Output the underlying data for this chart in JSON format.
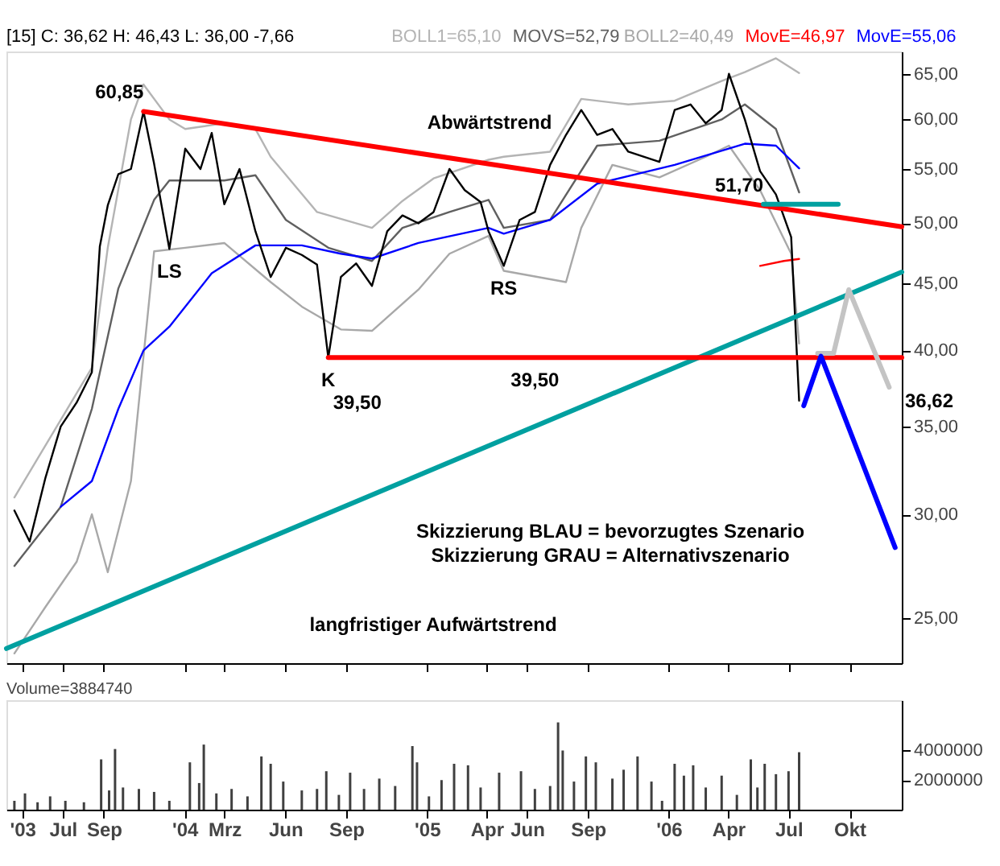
{
  "chart_data": [
    {
      "type": "line",
      "title": "[15] C: 36,62 H: 46,43 L: 36,00 -7,66",
      "log": "y",
      "tick_labels": "y",
      "xlim": [
        "2003-04-07",
        "2006-12-19"
      ],
      "xticks": [
        {
          "value": "2003-05-01",
          "label": null
        },
        {
          "value": "2003-07-01",
          "label": null
        },
        {
          "value": "2003-09-01",
          "label": null
        },
        {
          "value": "2004-01-01",
          "label": null
        },
        {
          "value": "2004-03-01",
          "label": null
        },
        {
          "value": "2004-06-01",
          "label": null
        },
        {
          "value": "2004-09-01",
          "label": null
        },
        {
          "value": "2005-01-01",
          "label": null
        },
        {
          "value": "2005-04-01",
          "label": null
        },
        {
          "value": "2005-06-01",
          "label": null
        },
        {
          "value": "2005-09-01",
          "label": null
        },
        {
          "value": "2006-01-01",
          "label": null
        },
        {
          "value": "2006-04-01",
          "label": null
        },
        {
          "value": "2006-07-01",
          "label": null
        },
        {
          "value": "2006-10-01",
          "label": null
        }
      ],
      "ylim": [
        23.1,
        67.6
      ],
      "yticks": [
        {
          "value": 25,
          "label": "25,00"
        },
        {
          "value": 30,
          "label": "30,00"
        },
        {
          "value": 35,
          "label": "35,00"
        },
        {
          "value": 40,
          "label": "40,00"
        },
        {
          "value": 45,
          "label": "45,00"
        },
        {
          "value": 50,
          "label": "50,00"
        },
        {
          "value": 55,
          "label": "55,00"
        },
        {
          "value": 60,
          "label": "60,00"
        },
        {
          "value": 65,
          "label": "65,00"
        }
      ],
      "series": [
        {
          "name": "BOLL1=65,10",
          "color": "#b4b4b4",
          "x": [
            "2003-04-19",
            "2003-08-14",
            "2003-09-07",
            "2003-10-12",
            "2003-10-31",
            "2003-12-09",
            "2004-01-02",
            "2004-03-01",
            "2004-04-17",
            "2004-05-10",
            "2004-07-19",
            "2004-10-10",
            "2004-11-25",
            "2005-01-11",
            "2005-04-04",
            "2005-04-27",
            "2005-07-06",
            "2005-08-22",
            "2005-11-01",
            "2006-01-10",
            "2006-03-22",
            "2006-04-26",
            "2006-06-12",
            "2006-07-17"
          ],
          "values": [
            30.9,
            38.8,
            47.9,
            60,
            63.8,
            60,
            59,
            59.6,
            59,
            56.2,
            51,
            49.6,
            52,
            54.1,
            55.9,
            56.2,
            56.7,
            62.2,
            61.6,
            62,
            64.2,
            65.2,
            66.8,
            65.1
          ]
        },
        {
          "name": "MOVS=52,79",
          "color": "#606060",
          "x": [
            "2003-04-19",
            "2003-06-28",
            "2003-08-14",
            "2003-09-23",
            "2003-11-16",
            "2003-12-09",
            "2004-03-01",
            "2004-04-17",
            "2004-06-02",
            "2004-08-05",
            "2004-10-10",
            "2004-11-25",
            "2005-02-04",
            "2005-04-04",
            "2005-04-27",
            "2005-07-06",
            "2005-09-15",
            "2005-12-18",
            "2006-03-22",
            "2006-04-26",
            "2006-06-12",
            "2006-07-17"
          ],
          "values": [
            27.4,
            30.4,
            36.1,
            44.6,
            52.1,
            53.9,
            53.9,
            54.4,
            50.3,
            47.9,
            46.8,
            49.6,
            51,
            52.1,
            49.6,
            50.3,
            57.3,
            57.8,
            60,
            61.6,
            59,
            52.79
          ]
        },
        {
          "name": "BOLL2=40,49",
          "color": "#a8a8a8",
          "x": [
            "2003-04-19",
            "2003-06-05",
            "2003-07-22",
            "2003-08-14",
            "2003-09-07",
            "2003-10-12",
            "2003-11-16",
            "2004-01-02",
            "2004-03-01",
            "2004-05-10",
            "2004-06-26",
            "2004-08-24",
            "2004-10-10",
            "2004-12-19",
            "2005-02-04",
            "2005-04-04",
            "2005-04-27",
            "2005-07-30",
            "2005-08-22",
            "2005-10-08",
            "2005-12-18",
            "2006-02-26",
            "2006-04-02",
            "2006-05-19",
            "2006-07-05",
            "2006-07-17"
          ],
          "values": [
            23.5,
            25.5,
            27.6,
            30,
            27.1,
            31.8,
            47.6,
            47.9,
            48.3,
            45.1,
            43.2,
            41.5,
            41.4,
            44.5,
            47.4,
            48.9,
            46,
            45.1,
            49.6,
            55.4,
            54.2,
            56.2,
            57.3,
            53,
            47.4,
            40.49
          ]
        },
        {
          "name": "MovE=46,97",
          "color": "#ff0000",
          "x": [
            "2006-05-19",
            "2006-06-24",
            "2006-07-17"
          ],
          "values": [
            46.4,
            46.8,
            46.97
          ]
        },
        {
          "name": "MovE=55,06",
          "color": "#0000ff",
          "x": [
            "2003-06-28",
            "2003-08-14",
            "2003-09-23",
            "2003-10-31",
            "2003-12-09",
            "2004-02-11",
            "2004-04-17",
            "2004-06-26",
            "2004-08-24",
            "2004-10-10",
            "2004-12-19",
            "2005-04-04",
            "2005-04-27",
            "2005-07-06",
            "2005-09-15",
            "2006-01-10",
            "2006-04-26",
            "2006-06-12",
            "2006-07-17"
          ],
          "values": [
            30.4,
            31.8,
            36.1,
            40,
            41.7,
            45.8,
            48.1,
            48.1,
            47.4,
            47,
            48.3,
            49.6,
            49.1,
            50.3,
            53.6,
            55.4,
            57.5,
            57.3,
            55.06
          ]
        },
        {
          "color": "#000000",
          "x": [
            "2003-04-19",
            "2003-05-12",
            "2003-06-05",
            "2003-06-28",
            "2003-07-22",
            "2003-08-14",
            "2003-08-26",
            "2003-09-07",
            "2003-09-23",
            "2003-10-12",
            "2003-10-31",
            "2003-11-16",
            "2003-12-09",
            "2004-01-02",
            "2004-01-25",
            "2004-02-11",
            "2004-03-01",
            "2004-03-24",
            "2004-04-17",
            "2004-05-10",
            "2004-06-02",
            "2004-06-26",
            "2004-07-19",
            "2004-08-05",
            "2004-08-24",
            "2004-09-16",
            "2004-10-10",
            "2004-11-02",
            "2004-11-25",
            "2004-12-19",
            "2005-01-11",
            "2005-02-04",
            "2005-02-27",
            "2005-03-23",
            "2005-04-04",
            "2005-04-27",
            "2005-05-21",
            "2005-06-13",
            "2005-07-06",
            "2005-07-30",
            "2005-08-22",
            "2005-09-15",
            "2005-10-08",
            "2005-11-01",
            "2005-11-24",
            "2005-12-18",
            "2006-01-10",
            "2006-02-03",
            "2006-02-26",
            "2006-03-22",
            "2006-04-02",
            "2006-04-26",
            "2006-05-19",
            "2006-06-12",
            "2006-07-05",
            "2006-07-17"
          ],
          "values": [
            30.2,
            28.6,
            32,
            35,
            36.5,
            38.5,
            48,
            51.6,
            54.5,
            55,
            60.85,
            55.5,
            47.8,
            57,
            55,
            58.6,
            51.7,
            55,
            49.3,
            45.5,
            47.9,
            47.3,
            46.5,
            39.5,
            45.5,
            46.6,
            44.8,
            49.3,
            50.7,
            50,
            51,
            55,
            53,
            51.9,
            49.3,
            46.4,
            50.3,
            51,
            55.4,
            58.4,
            61,
            58.4,
            59,
            56.7,
            56.2,
            55.7,
            61,
            61.6,
            59.6,
            61,
            65,
            60,
            54.8,
            52.6,
            48.8,
            36.62
          ]
        },
        {
          "color": "#ff0000",
          "x": [
            "2003-10-31",
            "2006-12-19"
          ],
          "values": [
            60.85,
            49.7
          ]
        },
        {
          "color": "#00a0a0",
          "x": [
            "2003-04-07",
            "2006-12-19"
          ],
          "values": [
            23.7,
            45.9
          ]
        },
        {
          "color": "#ff0000",
          "x": [
            "2004-08-05",
            "2006-12-19"
          ],
          "values": [
            39.5,
            39.5
          ]
        },
        {
          "color": "#00a0a0",
          "x": [
            "2006-05-24",
            "2006-09-14"
          ],
          "values": [
            51.7,
            51.7
          ]
        },
        {
          "color": "#c4c4c4",
          "x": [
            "2006-08-14",
            "2006-09-07",
            "2006-09-30",
            "2006-11-30"
          ],
          "values": [
            39.8,
            39.8,
            44.5,
            37.5
          ]
        },
        {
          "color": "#0000ff",
          "x": [
            "2006-07-24",
            "2006-08-19",
            "2006-12-09"
          ],
          "values": [
            36.3,
            39.6,
            28.3
          ]
        }
      ],
      "annotations": [
        {
          "text": "60,85",
          "x": "2003-10-31",
          "y": 60.85
        },
        "Abwärtstrend",
        {
          "text": "LS",
          "x": "2003-12-09",
          "y": 47.8
        },
        {
          "text": "K",
          "x": "2004-08-05",
          "y": 39.5
        },
        {
          "text": "39,50",
          "x": "2004-08-05",
          "y": 39.5
        },
        {
          "text": "RS",
          "x": "2005-04-27",
          "y": 46.4
        },
        {
          "text": "39,50",
          "x": "2005-06-13",
          "y": 39.5
        },
        {
          "text": "51,70",
          "x": "2006-05-24",
          "y": 51.7
        },
        "langfristiger Aufwärtstrend",
        "Skizzierung BLAU = bevorzugtes Szenario",
        "Skizzierung GRAU = Alternativszenario",
        "36,62"
      ]
    },
    {
      "type": "bar",
      "title": "Volume=3884740",
      "color": "#404040",
      "xlim": [
        "2003-04-07",
        "2006-12-19"
      ],
      "xticks": [
        {
          "value": "2003-05-01",
          "label": "'03"
        },
        {
          "value": "2003-07-01",
          "label": "Jul"
        },
        {
          "value": "2003-09-01",
          "label": "Sep"
        },
        {
          "value": "2004-01-01",
          "label": "'04"
        },
        {
          "value": "2004-03-01",
          "label": "Mrz"
        },
        {
          "value": "2004-06-01",
          "label": "Jun"
        },
        {
          "value": "2004-09-01",
          "label": "Sep"
        },
        {
          "value": "2005-01-01",
          "label": "'05"
        },
        {
          "value": "2005-04-01",
          "label": "Apr"
        },
        {
          "value": "2005-06-01",
          "label": "Jun"
        },
        {
          "value": "2005-09-01",
          "label": "Sep"
        },
        {
          "value": "2006-01-01",
          "label": "'06"
        },
        {
          "value": "2006-04-01",
          "label": "Apr"
        },
        {
          "value": "2006-07-01",
          "label": "Jul"
        },
        {
          "value": "2006-10-01",
          "label": "Okt"
        }
      ],
      "ylim": [
        0,
        7400000
      ],
      "yticks": [
        2000000,
        4000000
      ],
      "x": [
        "2003-04-19",
        "2003-05-05",
        "2003-05-24",
        "2003-06-12",
        "2003-07-05",
        "2003-08-02",
        "2003-08-28",
        "2003-09-09",
        "2003-09-18",
        "2003-09-30",
        "2003-10-24",
        "2003-11-16",
        "2003-12-09",
        "2004-01-09",
        "2004-01-23",
        "2004-01-30",
        "2004-02-18",
        "2004-03-12",
        "2004-04-05",
        "2004-04-26",
        "2004-05-10",
        "2004-05-29",
        "2004-06-26",
        "2004-07-19",
        "2004-08-02",
        "2004-08-21",
        "2004-09-07",
        "2004-09-28",
        "2004-10-21",
        "2004-11-14",
        "2004-12-10",
        "2004-12-17",
        "2005-01-04",
        "2005-01-23",
        "2005-02-11",
        "2005-03-04",
        "2005-03-23",
        "2005-04-20",
        "2005-05-23",
        "2005-06-13",
        "2005-07-06",
        "2005-07-18",
        "2005-07-25",
        "2005-08-11",
        "2005-08-29",
        "2005-09-13",
        "2005-10-08",
        "2005-10-25",
        "2005-11-15",
        "2005-12-06",
        "2005-12-22",
        "2006-01-10",
        "2006-01-24",
        "2006-02-07",
        "2006-02-26",
        "2006-03-22",
        "2006-04-14",
        "2006-05-05",
        "2006-05-15",
        "2006-05-26",
        "2006-06-12",
        "2006-07-01",
        "2006-07-17"
      ],
      "values": [
        600000,
        1100000,
        500000,
        900000,
        600000,
        500000,
        3400000,
        1300000,
        4100000,
        1500000,
        1400000,
        1200000,
        600000,
        3200000,
        1800000,
        4400000,
        1100000,
        1400000,
        900000,
        3600000,
        3100000,
        1900000,
        1300000,
        1400000,
        2600000,
        1000000,
        2500000,
        1400000,
        2100000,
        1600000,
        4300000,
        3200000,
        900000,
        2000000,
        3100000,
        3000000,
        1500000,
        2500000,
        2600000,
        1400000,
        1600000,
        5900000,
        4000000,
        1900000,
        3600000,
        3200000,
        2100000,
        2700000,
        3600000,
        1900000,
        600000,
        3100000,
        2300000,
        3000000,
        1500000,
        2300000,
        1000000,
        3400000,
        1500000,
        3100000,
        2400000,
        2600000,
        3884740
      ]
    }
  ]
}
